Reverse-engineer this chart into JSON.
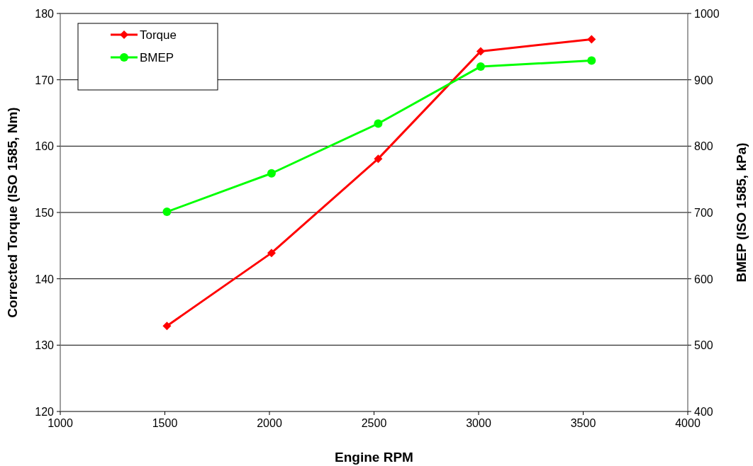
{
  "chart_data": {
    "type": "line",
    "xlabel": "Engine RPM",
    "ylabel": "Corrected Torque (ISO 1585, Nm)",
    "y2label": "BMEP (ISO 1585, kPa)",
    "x": [
      1510,
      2010,
      2520,
      3010,
      3540
    ],
    "series": [
      {
        "name": "Torque",
        "color": "#ff0000",
        "marker": "diamond",
        "values": [
          132.9,
          143.9,
          158.1,
          174.3,
          176.1
        ]
      },
      {
        "name": "BMEP",
        "color": "#00ff00",
        "marker": "circle",
        "axis": "y2",
        "values": [
          701,
          759,
          834,
          920,
          929
        ]
      }
    ],
    "xlim": [
      1000,
      4000
    ],
    "xticks": [
      1000,
      1500,
      2000,
      2500,
      3000,
      3500,
      4000
    ],
    "ylim": [
      120,
      180
    ],
    "yticks": [
      120,
      130,
      140,
      150,
      160,
      170,
      180
    ],
    "y2lim": [
      400,
      1000
    ],
    "y2ticks": [
      400,
      500,
      600,
      700,
      800,
      900,
      1000
    ],
    "grid": "y",
    "legend": "top left",
    "line_style": "solid"
  }
}
